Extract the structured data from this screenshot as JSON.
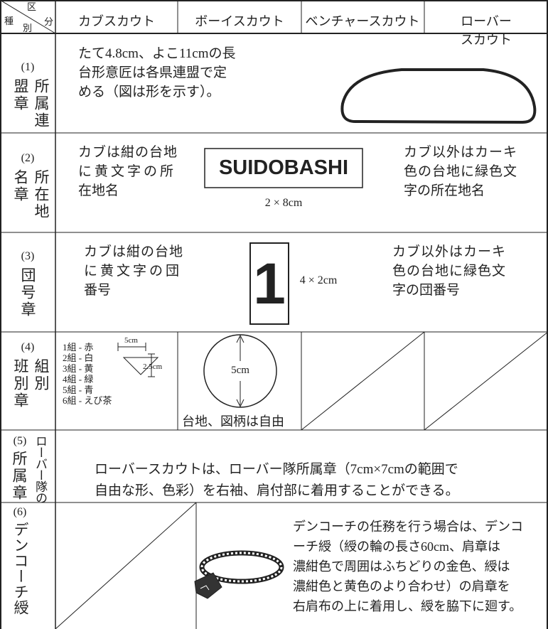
{
  "header": {
    "corner": {
      "top": "区",
      "right": "分",
      "left": "種",
      "bottom": "別"
    },
    "columns": [
      "カブスカウト",
      "ボーイスカウト",
      "ベンチャースカウト",
      "ローバースカウト"
    ]
  },
  "rows": [
    {
      "number": "(1)",
      "label": [
        "所属連",
        "盟章"
      ],
      "text": [
        "たて4.8cm、よこ11cmの長",
        "台形意匠は各県連盟で定",
        "める（図は形を示す）。"
      ]
    },
    {
      "number": "(2)",
      "label": [
        "所在地",
        "名章"
      ],
      "left_text": [
        "カブは紺の台地",
        "に黄文字の所",
        "在地名"
      ],
      "badge": "SUIDOBASHI",
      "size": "2 × 8cm",
      "right_text": [
        "カブ以外はカーキ",
        "色の台地に緑色文",
        "字の所在地名"
      ]
    },
    {
      "number": "(3)",
      "label": [
        "団号章"
      ],
      "left_text": [
        "カブは紺の台地",
        "に黄文字の団",
        "番号"
      ],
      "badge": "1",
      "size": "4 × 2cm",
      "right_text": [
        "カブ以外はカーキ",
        "色の台地に緑色文",
        "字の団番号"
      ]
    },
    {
      "number": "(4)",
      "label": [
        "組別",
        "班別章"
      ],
      "groups": [
        "1組 - 赤",
        "2組 - 白",
        "3組 - 黄",
        "4組 - 緑",
        "5組 - 青",
        "6組 - えび茶"
      ],
      "triangle_width": "5cm",
      "triangle_height": "2.5cm",
      "circle_size": "5cm",
      "note": "台地、図柄は自由"
    },
    {
      "number": "(5)",
      "label": [
        "ローバー隊の",
        "所属章"
      ],
      "text": [
        "ローバースカウトは、ローバー隊所属章（7cm×7cmの範囲で",
        "自由な形、色彩）を右袖、肩付部に着用することができる。"
      ]
    },
    {
      "number": "(6)",
      "label": [
        "デンコーチ綬"
      ],
      "text": [
        "デンコーチの任務を行う場合は、デンコ",
        "ーチ綬（綬の輪の長さ60cm、肩章は",
        "濃紺色で周囲はふちどりの金色、綬は",
        "濃紺色と黄色のより合わせ）の肩章を",
        "右肩布の上に着用し、綬を脇下に廻す。"
      ]
    }
  ]
}
